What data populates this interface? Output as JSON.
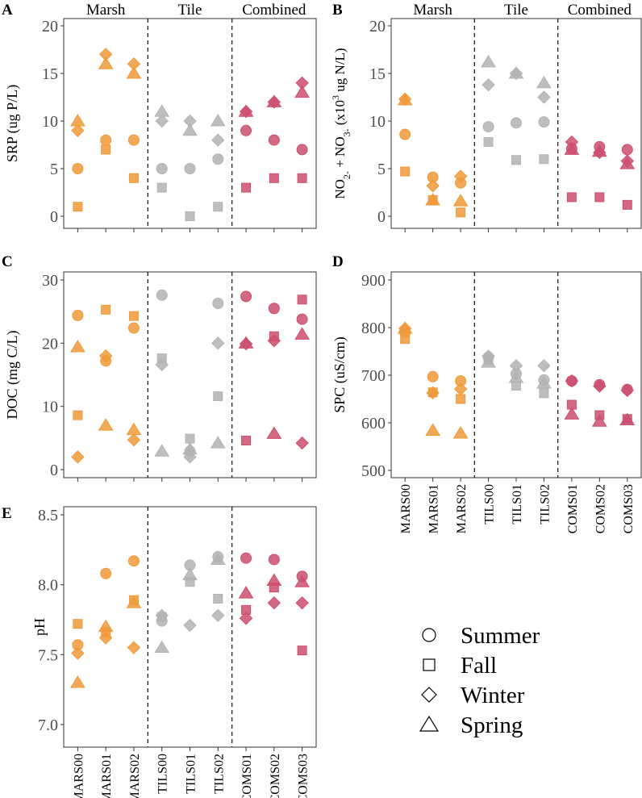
{
  "colors": {
    "Marsh": "#ee9a3a",
    "Tile": "#b3b3b3",
    "Combined": "#cc4f6f"
  },
  "chart_data": [
    {
      "panel": "A",
      "type": "scatter",
      "ylabel": "SRP (ug P/L)",
      "ylim": [
        0,
        20
      ],
      "yticks": [
        "0",
        "5",
        "10",
        "15",
        "20"
      ],
      "groups": [
        {
          "label": "Marsh",
          "sites": [
            "MARS00",
            "MARS01",
            "MARS02"
          ]
        },
        {
          "label": "Tile",
          "sites": [
            "TILS00",
            "TILS01",
            "TILS02"
          ]
        },
        {
          "label": "Combined",
          "sites": [
            "COMS01",
            "COMS02",
            "COMS03"
          ]
        }
      ],
      "series": [
        {
          "name": "Summer",
          "shape": "circle",
          "values": [
            5,
            8,
            8,
            5,
            5,
            6,
            9,
            8,
            7
          ]
        },
        {
          "name": "Fall",
          "shape": "square",
          "values": [
            1,
            7,
            4,
            3,
            0,
            1,
            3,
            4,
            4
          ]
        },
        {
          "name": "Winter",
          "shape": "diamond",
          "values": [
            9,
            17,
            16,
            10,
            10,
            8,
            11,
            12,
            14
          ]
        },
        {
          "name": "Spring",
          "shape": "triangle",
          "values": [
            10,
            16,
            15,
            11,
            9,
            10,
            11,
            12,
            13
          ]
        }
      ]
    },
    {
      "panel": "B",
      "type": "scatter",
      "ylabel": "NO2- + NO3- (x10^3 ug N/L)",
      "ylim": [
        0,
        20
      ],
      "yticks": [
        "0",
        "5",
        "10",
        "15",
        "20"
      ],
      "groups": [
        {
          "label": "Marsh",
          "sites": [
            "MARS00",
            "MARS01",
            "MARS02"
          ]
        },
        {
          "label": "Tile",
          "sites": [
            "TILS00",
            "TILS01",
            "TILS02"
          ]
        },
        {
          "label": "Combined",
          "sites": [
            "COMS01",
            "COMS02",
            "COMS03"
          ]
        }
      ],
      "series": [
        {
          "name": "Summer",
          "shape": "circle",
          "values": [
            8.6,
            4.1,
            3.5,
            9.4,
            9.8,
            9.9,
            7.1,
            7.3,
            7.0
          ]
        },
        {
          "name": "Fall",
          "shape": "square",
          "values": [
            4.7,
            1.7,
            0.4,
            7.8,
            5.9,
            6.0,
            2.0,
            2.0,
            1.2
          ]
        },
        {
          "name": "Winter",
          "shape": "diamond",
          "values": [
            12.3,
            3.2,
            4.2,
            13.8,
            15.0,
            12.5,
            7.8,
            6.7,
            5.8
          ]
        },
        {
          "name": "Spring",
          "shape": "triangle",
          "values": [
            12.2,
            1.7,
            1.6,
            16.2,
            15.0,
            14.0,
            7.0,
            6.8,
            5.5
          ]
        }
      ]
    },
    {
      "panel": "C",
      "type": "scatter",
      "ylabel": "DOC (mg C/L)",
      "ylim": [
        0,
        30
      ],
      "yticks": [
        "0",
        "10",
        "20",
        "30"
      ],
      "groups": [
        {
          "label": "Marsh",
          "sites": [
            "MARS00",
            "MARS01",
            "MARS02"
          ]
        },
        {
          "label": "Tile",
          "sites": [
            "TILS00",
            "TILS01",
            "TILS02"
          ]
        },
        {
          "label": "Combined",
          "sites": [
            "COMS01",
            "COMS02",
            "COMS03"
          ]
        }
      ],
      "series": [
        {
          "name": "Summer",
          "shape": "circle",
          "values": [
            24.4,
            17.2,
            22.4,
            27.6,
            2.9,
            26.3,
            27.4,
            25.5,
            23.8
          ]
        },
        {
          "name": "Fall",
          "shape": "square",
          "values": [
            8.6,
            25.3,
            24.3,
            17.6,
            4.9,
            11.6,
            4.6,
            21.1,
            26.9
          ]
        },
        {
          "name": "Winter",
          "shape": "diamond",
          "values": [
            2.0,
            18.0,
            4.7,
            16.6,
            2.0,
            20.0,
            19.9,
            20.4,
            4.2
          ]
        },
        {
          "name": "Spring",
          "shape": "triangle",
          "values": [
            19.4,
            7.0,
            6.3,
            2.9,
            3.2,
            4.2,
            20.0,
            5.7,
            21.4
          ]
        }
      ]
    },
    {
      "panel": "D",
      "type": "scatter",
      "ylabel": "SPC (uS/cm)",
      "ylim": [
        500,
        900
      ],
      "yticks": [
        "500",
        "600",
        "700",
        "800",
        "900"
      ],
      "groups": [
        {
          "label": "Marsh",
          "sites": [
            "MARS00",
            "MARS01",
            "MARS02"
          ]
        },
        {
          "label": "Tile",
          "sites": [
            "TILS00",
            "TILS01",
            "TILS02"
          ]
        },
        {
          "label": "Combined",
          "sites": [
            "COMS01",
            "COMS02",
            "COMS03"
          ]
        }
      ],
      "series": [
        {
          "name": "Summer",
          "shape": "circle",
          "values": [
            790,
            697,
            688,
            738,
            703,
            690,
            688,
            680,
            670
          ]
        },
        {
          "name": "Fall",
          "shape": "square",
          "values": [
            776,
            664,
            650,
            732,
            678,
            662,
            638,
            616,
            608
          ]
        },
        {
          "name": "Winter",
          "shape": "diamond",
          "values": [
            798,
            663,
            671,
            740,
            720,
            720,
            688,
            677,
            668
          ]
        },
        {
          "name": "Spring",
          "shape": "triangle",
          "values": [
            798,
            584,
            578,
            727,
            695,
            683,
            618,
            603,
            606
          ]
        }
      ]
    },
    {
      "panel": "E",
      "type": "scatter",
      "ylabel": "pH",
      "ylim": [
        7.0,
        8.5
      ],
      "yticks": [
        "7.0",
        "7.5",
        "8.0",
        "8.5"
      ],
      "groups": [
        {
          "label": "Marsh",
          "sites": [
            "MARS00",
            "MARS01",
            "MARS02"
          ]
        },
        {
          "label": "Tile",
          "sites": [
            "TILS00",
            "TILS01",
            "TILS02"
          ]
        },
        {
          "label": "Combined",
          "sites": [
            "COMS01",
            "COMS02",
            "COMS03"
          ]
        }
      ],
      "series": [
        {
          "name": "Summer",
          "shape": "circle",
          "values": [
            7.57,
            8.08,
            8.17,
            7.74,
            8.14,
            8.2,
            8.19,
            8.18,
            8.06
          ]
        },
        {
          "name": "Fall",
          "shape": "square",
          "values": [
            7.72,
            7.66,
            7.89,
            7.77,
            8.02,
            7.9,
            7.82,
            7.98,
            7.53
          ]
        },
        {
          "name": "Winter",
          "shape": "diamond",
          "values": [
            7.51,
            7.62,
            7.55,
            7.78,
            7.71,
            7.78,
            7.76,
            7.87,
            7.87
          ]
        },
        {
          "name": "Spring",
          "shape": "triangle",
          "values": [
            7.3,
            7.7,
            7.87,
            7.55,
            8.07,
            8.18,
            7.94,
            8.03,
            8.02
          ]
        }
      ]
    }
  ],
  "legend": {
    "items": [
      {
        "label": "Summer",
        "shape": "circle"
      },
      {
        "label": "Fall",
        "shape": "square"
      },
      {
        "label": "Winter",
        "shape": "diamond"
      },
      {
        "label": "Spring",
        "shape": "triangle"
      }
    ]
  }
}
